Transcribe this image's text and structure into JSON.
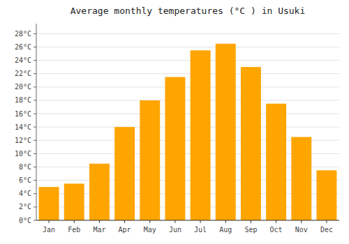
{
  "chart_data": {
    "type": "bar",
    "title": "Average monthly temperatures (°C ) in Usuki",
    "categories": [
      "Jan",
      "Feb",
      "Mar",
      "Apr",
      "May",
      "Jun",
      "Jul",
      "Aug",
      "Sep",
      "Oct",
      "Nov",
      "Dec"
    ],
    "values": [
      5.0,
      5.5,
      8.5,
      14.0,
      18.0,
      21.5,
      25.5,
      26.5,
      23.0,
      17.5,
      12.5,
      7.5
    ],
    "color": "#FFA500",
    "ylim": [
      0,
      29.5
    ],
    "yticks": [
      {
        "value": 0,
        "label": "0°C"
      },
      {
        "value": 2,
        "label": "2°C"
      },
      {
        "value": 4,
        "label": "4°C"
      },
      {
        "value": 6,
        "label": "6°C"
      },
      {
        "value": 8,
        "label": "8°C"
      },
      {
        "value": 10,
        "label": "10°C"
      },
      {
        "value": 12,
        "label": "12°C"
      },
      {
        "value": 14,
        "label": "14°C"
      },
      {
        "value": 16,
        "label": "16°C"
      },
      {
        "value": 18,
        "label": "18°C"
      },
      {
        "value": 20,
        "label": "20°C"
      },
      {
        "value": 22,
        "label": "22°C"
      },
      {
        "value": 24,
        "label": "24°C"
      },
      {
        "value": 26,
        "label": "26°C"
      },
      {
        "value": 28,
        "label": "28°C"
      }
    ],
    "grid": true
  }
}
